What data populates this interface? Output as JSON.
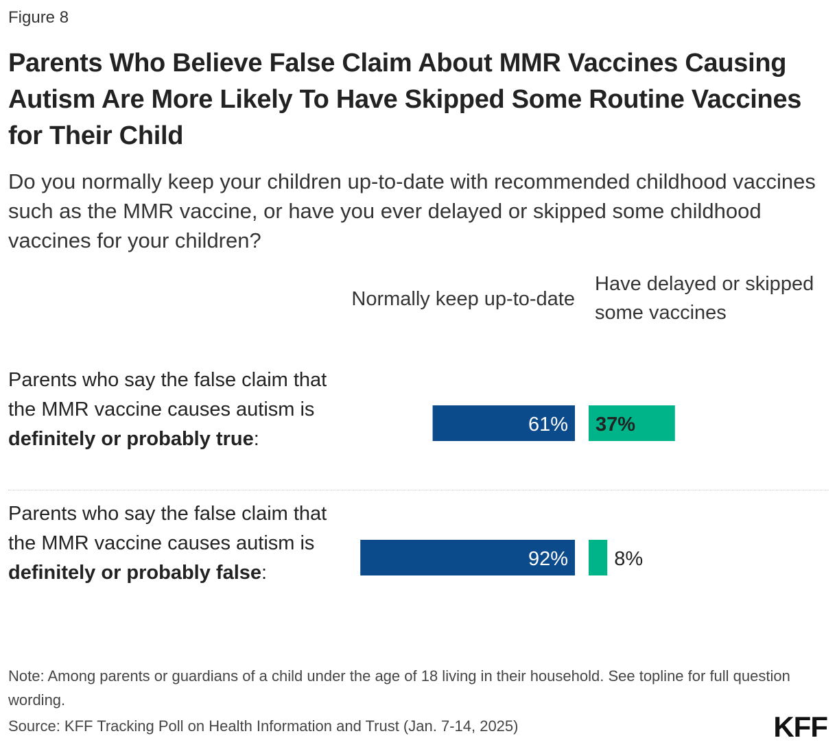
{
  "figure_label": "Figure 8",
  "title": "Parents Who Believe False Claim About MMR Vaccines Causing Autism Are More Likely To Have Skipped Some Routine Vaccines for Their Child",
  "subtitle": "Do you normally keep your children up-to-date with recommended childhood vaccines such as the MMR vaccine, or have you ever delayed or skipped some childhood vaccines for your children?",
  "columns": {
    "left": "Normally keep up-to-date",
    "right": "Have delayed or skipped some vaccines"
  },
  "rows": [
    {
      "label_prefix": "Parents who say the false claim that the MMR vaccine causes autism is ",
      "label_bold": "definitely or probably true",
      "label_suffix": ":"
    },
    {
      "label_prefix": "Parents who say the false claim that the MMR vaccine causes autism is ",
      "label_bold": "definitely or probably false",
      "label_suffix": ":"
    }
  ],
  "chart_data": {
    "type": "bar",
    "orientation": "horizontal-diverging",
    "categories": [
      "Parents who say the false claim that the MMR vaccine causes autism is definitely or probably true:",
      "Parents who say the false claim that the MMR vaccine causes autism is definitely or probably false:"
    ],
    "series": [
      {
        "name": "Normally keep up-to-date",
        "values": [
          61,
          92
        ],
        "labels": [
          "61%",
          "92%"
        ],
        "color": "#0b4a8b"
      },
      {
        "name": "Have delayed or skipped some vaccines",
        "values": [
          37,
          8
        ],
        "labels": [
          "37%",
          "8%"
        ],
        "color": "#00b489"
      }
    ],
    "unit": "%",
    "grid": false,
    "legend": "column headers"
  },
  "note": "Note: Among parents or guardians of a child under the age of 18 living in their household. See topline for full question wording.",
  "source": "Source: KFF Tracking Poll on Health Information and Trust (Jan. 7-14, 2025)",
  "logo": "KFF"
}
